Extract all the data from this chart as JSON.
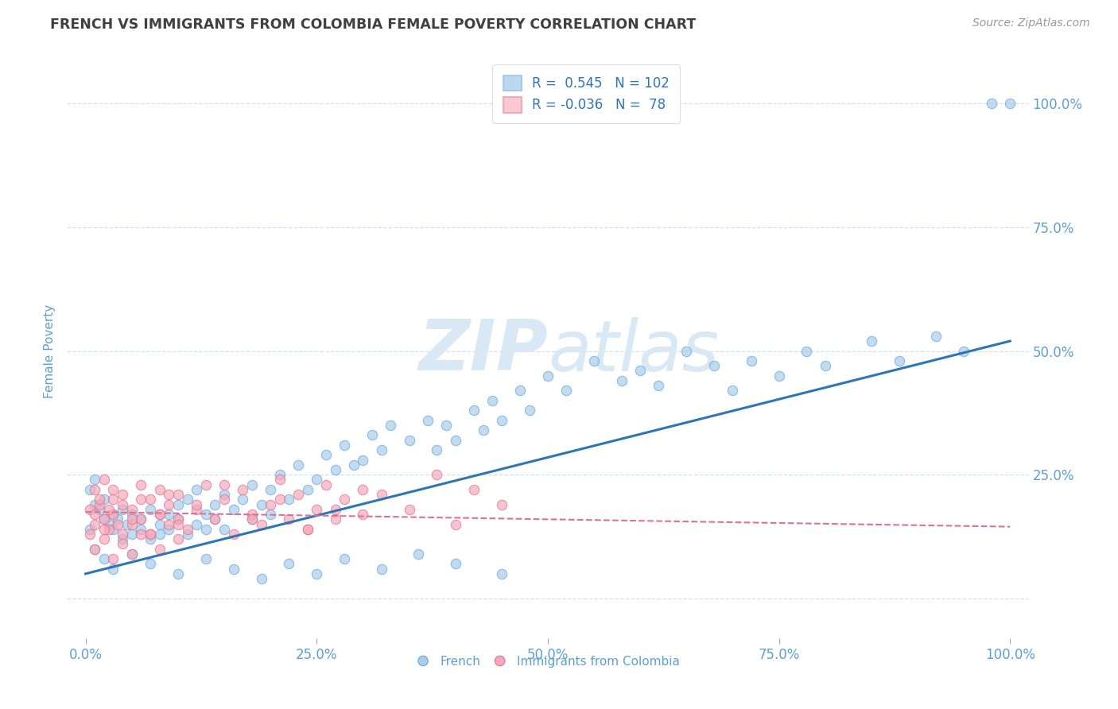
{
  "title": "FRENCH VS IMMIGRANTS FROM COLOMBIA FEMALE POVERTY CORRELATION CHART",
  "source": "Source: ZipAtlas.com",
  "ylabel": "Female Poverty",
  "xlim": [
    -0.02,
    1.02
  ],
  "ylim": [
    -0.08,
    1.08
  ],
  "xticks": [
    0.0,
    0.25,
    0.5,
    0.75,
    1.0
  ],
  "yticks": [
    0.0,
    0.25,
    0.5,
    0.75,
    1.0
  ],
  "xtick_labels": [
    "0.0%",
    "25.0%",
    "50.0%",
    "75.0%",
    "100.0%"
  ],
  "ytick_labels": [
    "",
    "25.0%",
    "50.0%",
    "75.0%",
    "100.0%"
  ],
  "blue_R": 0.545,
  "blue_N": 102,
  "pink_R": -0.036,
  "pink_N": 78,
  "blue_color": "#A8CCEA",
  "blue_edge": "#6AA8D8",
  "pink_color": "#F4AABB",
  "pink_edge": "#E07090",
  "blue_line_color": "#2E75B6",
  "pink_line_color": "#E07090",
  "legend_blue_face": "#BDD7EE",
  "legend_pink_face": "#F9C8D3",
  "title_color": "#404040",
  "axis_label_color": "#5B9FD4",
  "tick_color": "#5B9FD4",
  "grid_color": "#C8D8E8",
  "watermark_color": "#D8E8F4",
  "blue_scatter_x": [
    0.005,
    0.01,
    0.01,
    0.015,
    0.02,
    0.02,
    0.025,
    0.03,
    0.03,
    0.035,
    0.04,
    0.04,
    0.045,
    0.05,
    0.05,
    0.06,
    0.06,
    0.07,
    0.07,
    0.08,
    0.08,
    0.09,
    0.09,
    0.1,
    0.1,
    0.11,
    0.11,
    0.12,
    0.12,
    0.13,
    0.13,
    0.14,
    0.14,
    0.15,
    0.15,
    0.16,
    0.17,
    0.18,
    0.18,
    0.19,
    0.2,
    0.2,
    0.21,
    0.22,
    0.23,
    0.24,
    0.25,
    0.26,
    0.27,
    0.28,
    0.29,
    0.3,
    0.31,
    0.32,
    0.33,
    0.35,
    0.37,
    0.38,
    0.39,
    0.4,
    0.42,
    0.43,
    0.44,
    0.45,
    0.47,
    0.48,
    0.5,
    0.52,
    0.55,
    0.58,
    0.6,
    0.62,
    0.65,
    0.68,
    0.7,
    0.72,
    0.75,
    0.78,
    0.8,
    0.85,
    0.88,
    0.92,
    0.95,
    0.98,
    1.0,
    0.005,
    0.01,
    0.02,
    0.03,
    0.05,
    0.07,
    0.1,
    0.13,
    0.16,
    0.19,
    0.22,
    0.25,
    0.28,
    0.32,
    0.36,
    0.4,
    0.45
  ],
  "blue_scatter_y": [
    0.22,
    0.19,
    0.24,
    0.18,
    0.2,
    0.16,
    0.15,
    0.17,
    0.14,
    0.16,
    0.12,
    0.18,
    0.15,
    0.13,
    0.17,
    0.14,
    0.16,
    0.12,
    0.18,
    0.15,
    0.13,
    0.17,
    0.14,
    0.16,
    0.19,
    0.13,
    0.2,
    0.15,
    0.22,
    0.17,
    0.14,
    0.19,
    0.16,
    0.21,
    0.14,
    0.18,
    0.2,
    0.16,
    0.23,
    0.19,
    0.22,
    0.17,
    0.25,
    0.2,
    0.27,
    0.22,
    0.24,
    0.29,
    0.26,
    0.31,
    0.27,
    0.28,
    0.33,
    0.3,
    0.35,
    0.32,
    0.36,
    0.3,
    0.35,
    0.32,
    0.38,
    0.34,
    0.4,
    0.36,
    0.42,
    0.38,
    0.45,
    0.42,
    0.48,
    0.44,
    0.46,
    0.43,
    0.5,
    0.47,
    0.42,
    0.48,
    0.45,
    0.5,
    0.47,
    0.52,
    0.48,
    0.53,
    0.5,
    1.0,
    1.0,
    0.14,
    0.1,
    0.08,
    0.06,
    0.09,
    0.07,
    0.05,
    0.08,
    0.06,
    0.04,
    0.07,
    0.05,
    0.08,
    0.06,
    0.09,
    0.07,
    0.05
  ],
  "pink_scatter_x": [
    0.005,
    0.01,
    0.01,
    0.015,
    0.02,
    0.02,
    0.025,
    0.03,
    0.03,
    0.04,
    0.04,
    0.05,
    0.05,
    0.06,
    0.06,
    0.07,
    0.07,
    0.08,
    0.08,
    0.09,
    0.09,
    0.1,
    0.1,
    0.11,
    0.12,
    0.13,
    0.14,
    0.15,
    0.16,
    0.17,
    0.18,
    0.19,
    0.2,
    0.21,
    0.22,
    0.23,
    0.24,
    0.25,
    0.26,
    0.27,
    0.28,
    0.3,
    0.32,
    0.35,
    0.38,
    0.4,
    0.42,
    0.45,
    0.005,
    0.01,
    0.015,
    0.02,
    0.025,
    0.03,
    0.035,
    0.04,
    0.05,
    0.06,
    0.07,
    0.08,
    0.09,
    0.1,
    0.12,
    0.15,
    0.18,
    0.21,
    0.24,
    0.27,
    0.3,
    0.01,
    0.02,
    0.03,
    0.04,
    0.05,
    0.06,
    0.08,
    0.1
  ],
  "pink_scatter_y": [
    0.18,
    0.15,
    0.22,
    0.19,
    0.16,
    0.24,
    0.14,
    0.2,
    0.17,
    0.13,
    0.21,
    0.18,
    0.15,
    0.23,
    0.16,
    0.2,
    0.13,
    0.22,
    0.17,
    0.15,
    0.19,
    0.16,
    0.21,
    0.14,
    0.18,
    0.23,
    0.16,
    0.2,
    0.13,
    0.22,
    0.17,
    0.15,
    0.19,
    0.24,
    0.16,
    0.21,
    0.14,
    0.18,
    0.23,
    0.16,
    0.2,
    0.17,
    0.21,
    0.18,
    0.25,
    0.15,
    0.22,
    0.19,
    0.13,
    0.17,
    0.2,
    0.14,
    0.18,
    0.22,
    0.15,
    0.19,
    0.16,
    0.2,
    0.13,
    0.17,
    0.21,
    0.15,
    0.19,
    0.23,
    0.16,
    0.2,
    0.14,
    0.18,
    0.22,
    0.1,
    0.12,
    0.08,
    0.11,
    0.09,
    0.13,
    0.1,
    0.12
  ],
  "blue_trend_x": [
    0.0,
    1.0
  ],
  "blue_trend_y": [
    0.05,
    0.52
  ],
  "pink_trend_x": [
    0.0,
    1.0
  ],
  "pink_trend_y": [
    0.175,
    0.145
  ],
  "figsize": [
    14.06,
    8.92
  ],
  "dpi": 100
}
